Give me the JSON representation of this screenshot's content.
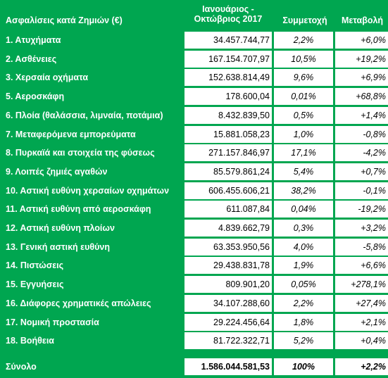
{
  "header": {
    "category": "Ασφαλίσεις κατά Ζημιών (€)",
    "period_line1": "Ιανουάριος -",
    "period_line2": "Οκτώβριος 2017",
    "share": "Συμμετοχή",
    "change": "Μεταβολή"
  },
  "rows": [
    {
      "label": "1. Ατυχήματα",
      "value": "34.457.744,77",
      "share": "2,2%",
      "change": "+6,0%"
    },
    {
      "label": "2. Ασθένειες",
      "value": "167.154.707,97",
      "share": "10,5%",
      "change": "+19,2%"
    },
    {
      "label": "3. Χερσαία οχήματα",
      "value": "152.638.814,49",
      "share": "9,6%",
      "change": "+6,9%"
    },
    {
      "label": "5. Αεροσκάφη",
      "value": "178.600,04",
      "share": "0,01%",
      "change": "+68,8%"
    },
    {
      "label": "6. Πλοία (θαλάσσια, λιμναία, ποτάμια)",
      "value": "8.432.839,50",
      "share": "0,5%",
      "change": "+1,4%"
    },
    {
      "label": "7. Μεταφερόμενα εμπορεύματα",
      "value": "15.881.058,23",
      "share": "1,0%",
      "change": "-0,8%"
    },
    {
      "label": "8. Πυρκαϊά και στοιχεία της φύσεως",
      "value": "271.157.846,97",
      "share": "17,1%",
      "change": "-4,2%"
    },
    {
      "label": "9. Λοιπές ζημιές αγαθών",
      "value": "85.579.861,24",
      "share": "5,4%",
      "change": "+0,7%"
    },
    {
      "label": "10. Αστική ευθύνη χερσαίων οχημάτων",
      "value": "606.455.606,21",
      "share": "38,2%",
      "change": "-0,1%"
    },
    {
      "label": "11. Αστική ευθύνη από αεροσκάφη",
      "value": "611.087,84",
      "share": "0,04%",
      "change": "-19,2%"
    },
    {
      "label": "12. Αστική ευθύνη πλοίων",
      "value": "4.839.662,79",
      "share": "0,3%",
      "change": "+3,2%"
    },
    {
      "label": "13. Γενική αστική ευθύνη",
      "value": "63.353.950,56",
      "share": "4,0%",
      "change": "-5,8%"
    },
    {
      "label": "14. Πιστώσεις",
      "value": "29.438.831,78",
      "share": "1,9%",
      "change": "+6,6%"
    },
    {
      "label": "15. Εγγυήσεις",
      "value": "809.901,20",
      "share": "0,05%",
      "change": "+278,1%"
    },
    {
      "label": "16. Διάφορες χρηματικές απώλειες",
      "value": "34.107.288,60",
      "share": "2,2%",
      "change": "+27,4%"
    },
    {
      "label": "17. Νομική προστασία",
      "value": "29.224.456,64",
      "share": "1,8%",
      "change": "+2,1%"
    },
    {
      "label": "18. Βοήθεια",
      "value": "81.722.322,71",
      "share": "5,2%",
      "change": "+0,4%"
    }
  ],
  "total": {
    "label": "Σύνολο",
    "value": "1.586.044.581,53",
    "share": "100%",
    "change": "+2,2%"
  }
}
